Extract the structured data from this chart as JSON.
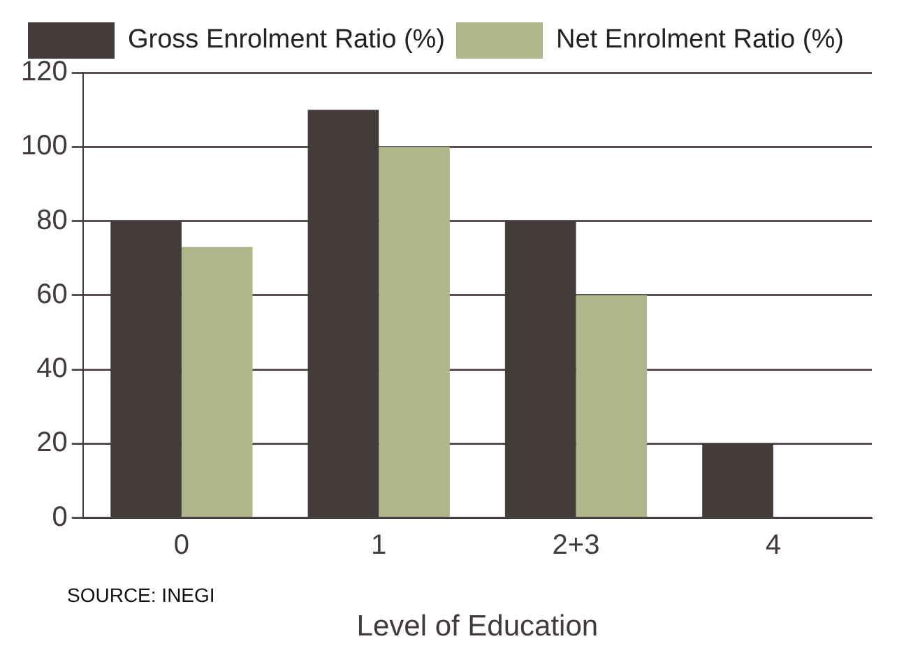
{
  "chart_data": {
    "type": "bar",
    "categories": [
      "0",
      "1",
      "2+3",
      "4"
    ],
    "series": [
      {
        "name": "Gross Enrolment Ratio (%)",
        "color": "#433a3a",
        "values": [
          80,
          110,
          80,
          20
        ]
      },
      {
        "name": "Net Enrolment Ratio (%)",
        "color": "#aeb68a",
        "values": [
          73,
          100,
          60,
          null
        ]
      }
    ],
    "xlabel": "Level of Education",
    "annotations": [
      "SOURCE:  INEGI"
    ],
    "ylim": [
      0,
      120
    ],
    "yticks": [
      0,
      20,
      40,
      60,
      80,
      100,
      120
    ],
    "grid": "y",
    "legend": "top left"
  }
}
